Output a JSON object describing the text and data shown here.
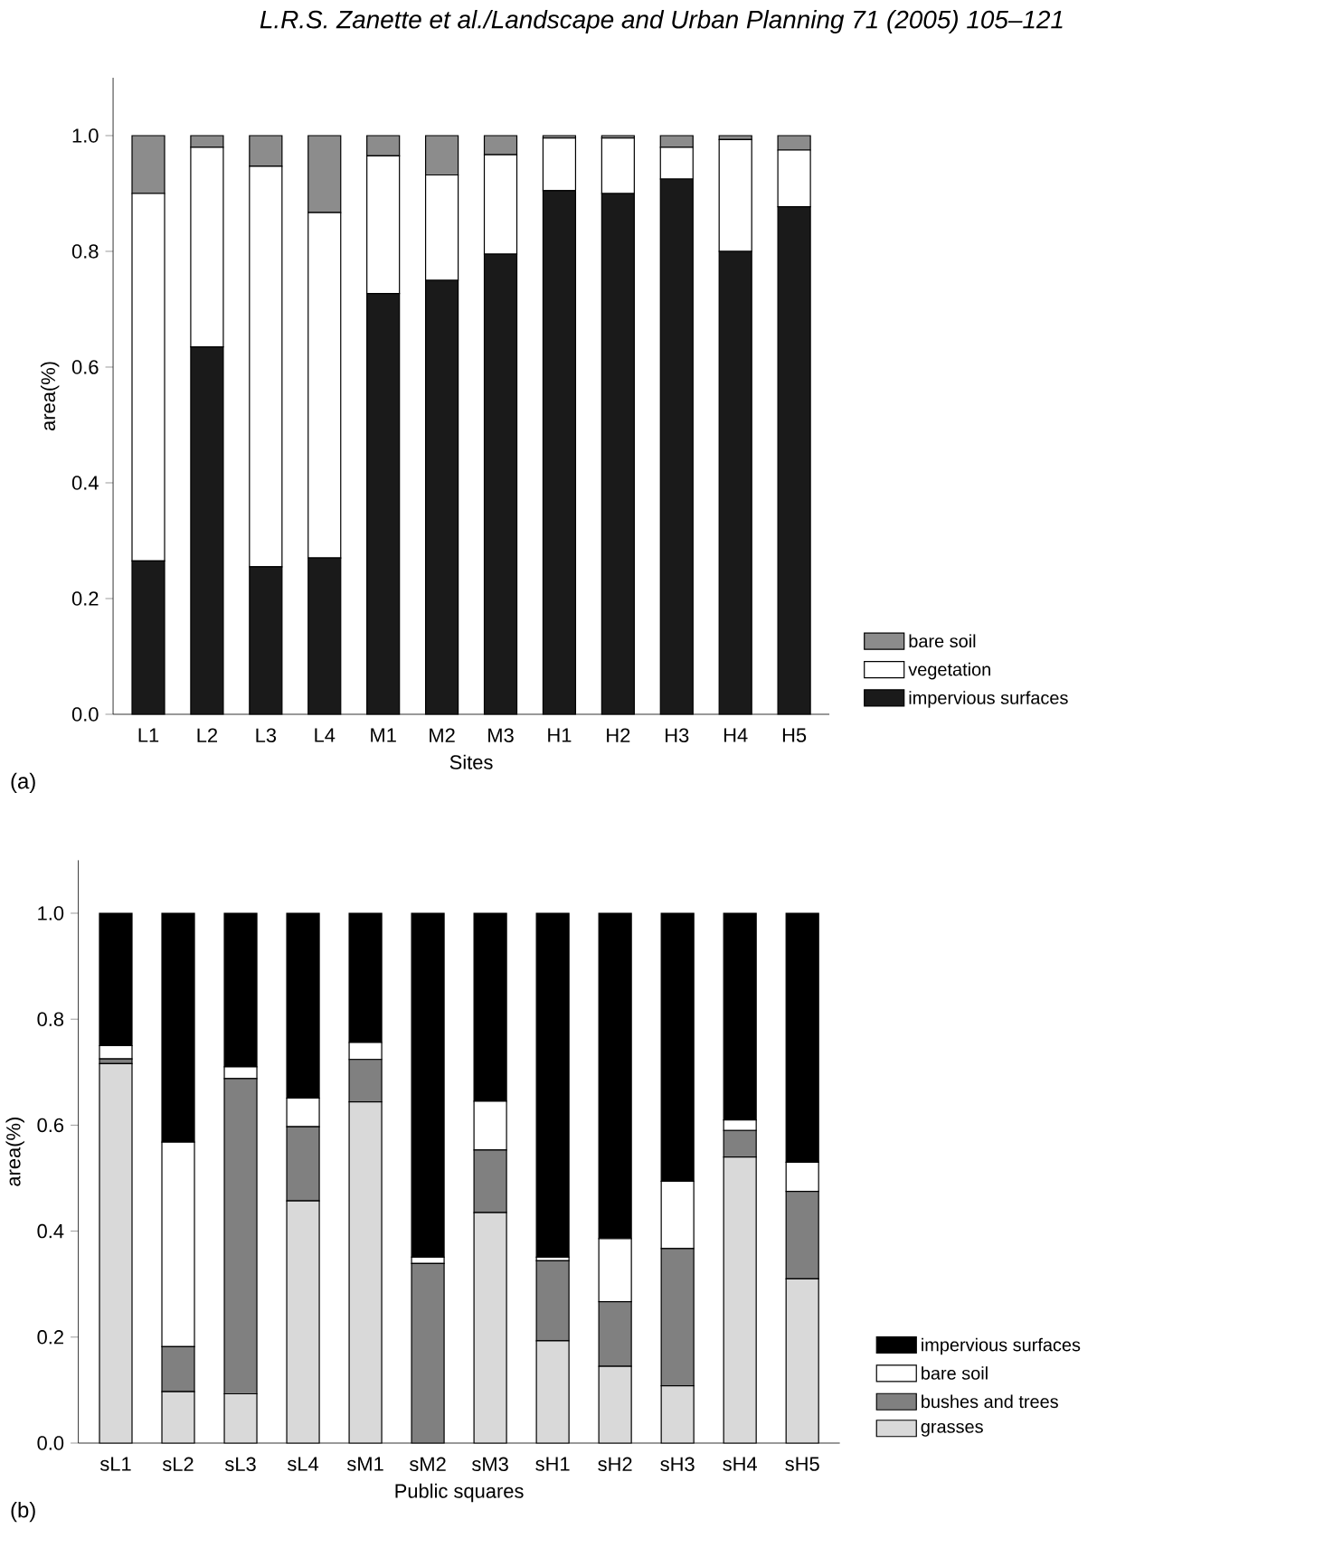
{
  "chart_data": [
    {
      "type": "bar",
      "stacked": true,
      "xlabel": "Sites",
      "ylabel": "area(%)",
      "legend": "right",
      "annotations": [
        "L.R.S. Zanette et al./Landscape and Urban Planning 71 (2005) 105–121",
        "(a)"
      ],
      "categories": [
        "L1",
        "L2",
        "L3",
        "L4",
        "M1",
        "M2",
        "M3",
        "H1",
        "H2",
        "H3",
        "H4",
        "H5"
      ],
      "ylim": [
        0,
        1.1
      ],
      "yticks": [
        {
          "value": 0,
          "label": "0.0"
        },
        {
          "value": 0.2,
          "label": "0.2"
        },
        {
          "value": 0.4,
          "label": "0.4"
        },
        {
          "value": 0.6,
          "label": "0.6"
        },
        {
          "value": 0.8,
          "label": "0.8"
        },
        {
          "value": 1,
          "label": "1.0"
        }
      ],
      "series": [
        {
          "name": "impervious surfaces",
          "color": "#1a1a1a",
          "values": [
            0.265,
            0.635,
            0.255,
            0.27,
            0.727,
            0.75,
            0.795,
            0.905,
            0.9,
            0.925,
            0.8,
            0.877
          ]
        },
        {
          "name": "vegetation",
          "color": "#ffffff",
          "values": [
            0.635,
            0.345,
            0.692,
            0.597,
            0.238,
            0.182,
            0.172,
            0.091,
            0.096,
            0.055,
            0.193,
            0.098
          ]
        },
        {
          "name": "bare soil",
          "color": "#8c8c8c",
          "values": [
            0.1,
            0.02,
            0.053,
            0.133,
            0.035,
            0.068,
            0.033,
            0.004,
            0.004,
            0.02,
            0.007,
            0.025
          ]
        }
      ]
    },
    {
      "type": "bar",
      "stacked": true,
      "xlabel": "Public squares",
      "ylabel": "area(%)",
      "legend": "right",
      "annotations": [
        "(b)"
      ],
      "categories": [
        "sL1",
        "sL2",
        "sL3",
        "sL4",
        "sM1",
        "sM2",
        "sM3",
        "sH1",
        "sH2",
        "sH3",
        "sH4",
        "sH5"
      ],
      "ylim": [
        0,
        1.1
      ],
      "yticks": [
        {
          "value": 0,
          "label": "0.0"
        },
        {
          "value": 0.2,
          "label": "0.2"
        },
        {
          "value": 0.4,
          "label": "0.4"
        },
        {
          "value": 0.6,
          "label": "0.6"
        },
        {
          "value": 0.8,
          "label": "0.8"
        },
        {
          "value": 1,
          "label": "1.0"
        }
      ],
      "series": [
        {
          "name": "grasses",
          "color": "#d9d9d9",
          "values": [
            0.716,
            0.097,
            0.093,
            0.457,
            0.644,
            0.0,
            0.435,
            0.193,
            0.145,
            0.108,
            0.54,
            0.31
          ]
        },
        {
          "name": "bushes and trees",
          "color": "#808080",
          "values": [
            0.009,
            0.085,
            0.595,
            0.14,
            0.08,
            0.339,
            0.118,
            0.151,
            0.122,
            0.259,
            0.05,
            0.165
          ]
        },
        {
          "name": "bare soil",
          "color": "#ffffff",
          "values": [
            0.025,
            0.386,
            0.022,
            0.054,
            0.032,
            0.012,
            0.092,
            0.007,
            0.119,
            0.127,
            0.02,
            0.055
          ]
        },
        {
          "name": "impervious surfaces",
          "color": "#000000",
          "values": [
            0.25,
            0.432,
            0.29,
            0.349,
            0.244,
            0.649,
            0.355,
            0.649,
            0.614,
            0.506,
            0.39,
            0.47
          ]
        }
      ]
    }
  ]
}
